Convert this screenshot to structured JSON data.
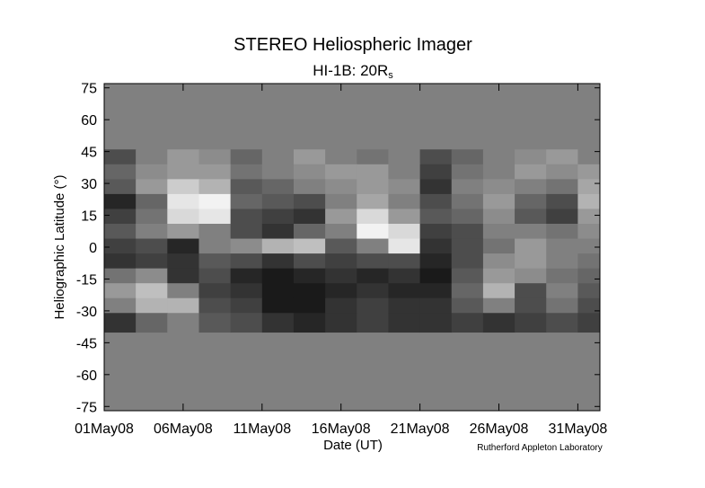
{
  "chart_data": {
    "type": "heatmap",
    "title": "STEREO Heliospheric Imager",
    "subtitle": "HI-1B: 20R",
    "subtitle_subscript": "s",
    "xlabel": "Date (UT)",
    "ylabel": "Heliographic Latitude (°)",
    "credit": "Rutherford Appleton Laboratory",
    "xlim": [
      1,
      32.4
    ],
    "ylim": [
      -77,
      77
    ],
    "xticks": [
      {
        "value": 1,
        "label": "01May08"
      },
      {
        "value": 6,
        "label": "06May08"
      },
      {
        "value": 11,
        "label": "11May08"
      },
      {
        "value": 16,
        "label": "16May08"
      },
      {
        "value": 21,
        "label": "21May08"
      },
      {
        "value": 26,
        "label": "26May08"
      },
      {
        "value": 31,
        "label": "31May08"
      }
    ],
    "yticks": [
      -75,
      -60,
      -45,
      -30,
      -15,
      0,
      15,
      30,
      45,
      60,
      75
    ],
    "background": "#808080",
    "xbins": [
      1,
      3,
      5,
      7,
      9,
      11,
      13,
      15,
      17,
      19,
      21,
      23,
      25,
      27,
      29,
      31,
      32.4
    ],
    "ybins": [
      46,
      39,
      32,
      25,
      18,
      11,
      4,
      -3,
      -10,
      -17,
      -24,
      -31,
      -40
    ],
    "z": [
      [
        0.3,
        0.5,
        0.6,
        0.55,
        0.4,
        0.5,
        0.6,
        0.5,
        0.45,
        0.5,
        0.3,
        0.4,
        0.5,
        0.55,
        0.6,
        0.5
      ],
      [
        0.4,
        0.55,
        0.6,
        0.6,
        0.45,
        0.5,
        0.55,
        0.6,
        0.6,
        0.5,
        0.25,
        0.45,
        0.5,
        0.6,
        0.55,
        0.6
      ],
      [
        0.35,
        0.6,
        0.8,
        0.7,
        0.35,
        0.4,
        0.5,
        0.55,
        0.6,
        0.55,
        0.2,
        0.5,
        0.55,
        0.5,
        0.45,
        0.65
      ],
      [
        0.15,
        0.4,
        0.9,
        0.95,
        0.4,
        0.35,
        0.3,
        0.5,
        0.65,
        0.5,
        0.3,
        0.45,
        0.6,
        0.4,
        0.3,
        0.7
      ],
      [
        0.25,
        0.45,
        0.85,
        0.9,
        0.3,
        0.25,
        0.2,
        0.6,
        0.85,
        0.6,
        0.35,
        0.4,
        0.55,
        0.35,
        0.25,
        0.6
      ],
      [
        0.35,
        0.5,
        0.6,
        0.5,
        0.3,
        0.2,
        0.4,
        0.5,
        0.95,
        0.85,
        0.25,
        0.3,
        0.5,
        0.5,
        0.45,
        0.55
      ],
      [
        0.25,
        0.3,
        0.15,
        0.5,
        0.55,
        0.7,
        0.75,
        0.35,
        0.5,
        0.9,
        0.2,
        0.3,
        0.45,
        0.6,
        0.5,
        0.5
      ],
      [
        0.2,
        0.25,
        0.2,
        0.35,
        0.3,
        0.2,
        0.3,
        0.25,
        0.3,
        0.3,
        0.15,
        0.3,
        0.55,
        0.6,
        0.5,
        0.45
      ],
      [
        0.45,
        0.55,
        0.2,
        0.3,
        0.15,
        0.1,
        0.15,
        0.2,
        0.15,
        0.2,
        0.1,
        0.35,
        0.6,
        0.55,
        0.45,
        0.4
      ],
      [
        0.6,
        0.75,
        0.5,
        0.25,
        0.2,
        0.1,
        0.1,
        0.15,
        0.2,
        0.15,
        0.15,
        0.4,
        0.7,
        0.3,
        0.5,
        0.35
      ],
      [
        0.5,
        0.7,
        0.7,
        0.3,
        0.25,
        0.1,
        0.1,
        0.2,
        0.25,
        0.2,
        0.2,
        0.35,
        0.5,
        0.3,
        0.45,
        0.3
      ],
      [
        0.2,
        0.4,
        0.5,
        0.35,
        0.3,
        0.2,
        0.15,
        0.2,
        0.25,
        0.2,
        0.2,
        0.25,
        0.2,
        0.25,
        0.3,
        0.25
      ]
    ]
  }
}
